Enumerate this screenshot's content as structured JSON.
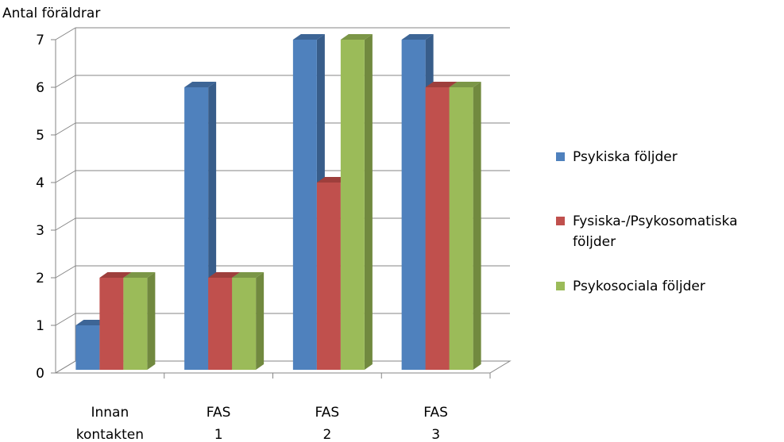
{
  "chart_data": {
    "type": "bar",
    "ylabel": "Antal föräldrar",
    "ylim": [
      0,
      7
    ],
    "yticks": [
      "0",
      "1",
      "2",
      "3",
      "4",
      "5",
      "6",
      "7"
    ],
    "categories": [
      "Innan kontakten",
      "FAS 1",
      "FAS 2",
      "FAS 3"
    ],
    "series": [
      {
        "name": "Psykiska följder",
        "values": [
          1,
          6,
          7,
          7
        ],
        "color": "#4F81BD",
        "side": "#385D8A",
        "top": "#3D6596"
      },
      {
        "name": "Fysiska-/Psykosomatiska följder",
        "values": [
          2,
          2,
          4,
          6
        ],
        "color": "#C0504D",
        "side": "#8C3836",
        "top": "#9E3F3C"
      },
      {
        "name": "Psykosociala följder",
        "values": [
          2,
          2,
          7,
          6
        ],
        "color": "#9BBB59",
        "side": "#71893F",
        "top": "#7B9647"
      }
    ],
    "grid": true,
    "legend_position": "right",
    "style": "3d-clustered-column"
  }
}
